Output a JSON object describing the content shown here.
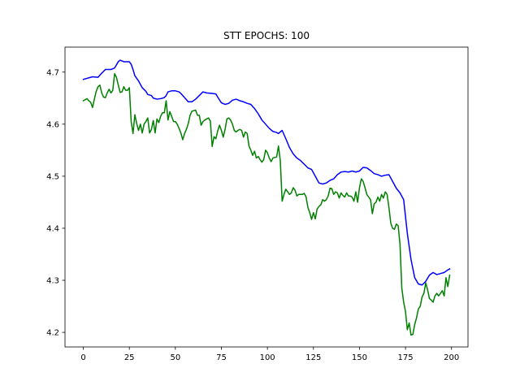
{
  "chart_data": {
    "type": "line",
    "title": "STT EPOCHS: 100",
    "xlabel": "",
    "ylabel": "",
    "xlim": [
      -9.95,
      208.95
    ],
    "ylim": [
      4.172,
      4.748
    ],
    "xticks": [
      0,
      25,
      50,
      75,
      100,
      125,
      150,
      175,
      200
    ],
    "yticks": [
      4.2,
      4.3,
      4.4,
      4.5,
      4.6,
      4.7
    ],
    "grid": false,
    "legend": "none",
    "series": [
      {
        "color": "#0000ff",
        "points": [
          [
            0,
            4.686
          ],
          [
            5,
            4.691
          ],
          [
            8,
            4.69
          ],
          [
            10,
            4.698
          ],
          [
            12,
            4.705
          ],
          [
            15,
            4.705
          ],
          [
            17,
            4.708
          ],
          [
            19,
            4.72
          ],
          [
            20,
            4.723
          ],
          [
            22,
            4.72
          ],
          [
            25,
            4.72
          ],
          [
            26,
            4.715
          ],
          [
            27,
            4.705
          ],
          [
            28,
            4.693
          ],
          [
            30,
            4.683
          ],
          [
            32,
            4.67
          ],
          [
            34,
            4.663
          ],
          [
            35,
            4.657
          ],
          [
            37,
            4.655
          ],
          [
            38,
            4.65
          ],
          [
            40,
            4.648
          ],
          [
            42,
            4.649
          ],
          [
            44,
            4.651
          ],
          [
            45,
            4.655
          ],
          [
            46,
            4.662
          ],
          [
            48,
            4.664
          ],
          [
            50,
            4.664
          ],
          [
            52,
            4.662
          ],
          [
            53,
            4.659
          ],
          [
            55,
            4.651
          ],
          [
            57,
            4.643
          ],
          [
            59,
            4.643
          ],
          [
            61,
            4.648
          ],
          [
            63,
            4.655
          ],
          [
            65,
            4.662
          ],
          [
            67,
            4.66
          ],
          [
            70,
            4.659
          ],
          [
            72,
            4.658
          ],
          [
            73,
            4.652
          ],
          [
            75,
            4.641
          ],
          [
            77,
            4.638
          ],
          [
            79,
            4.64
          ],
          [
            81,
            4.646
          ],
          [
            83,
            4.648
          ],
          [
            85,
            4.645
          ],
          [
            87,
            4.643
          ],
          [
            89,
            4.64
          ],
          [
            91,
            4.638
          ],
          [
            93,
            4.63
          ],
          [
            95,
            4.62
          ],
          [
            97,
            4.608
          ],
          [
            99,
            4.6
          ],
          [
            101,
            4.592
          ],
          [
            103,
            4.586
          ],
          [
            105,
            4.584
          ],
          [
            106,
            4.582
          ],
          [
            108,
            4.588
          ],
          [
            110,
            4.572
          ],
          [
            112,
            4.555
          ],
          [
            114,
            4.543
          ],
          [
            116,
            4.535
          ],
          [
            118,
            4.53
          ],
          [
            120,
            4.523
          ],
          [
            122,
            4.516
          ],
          [
            124,
            4.513
          ],
          [
            126,
            4.5
          ],
          [
            128,
            4.487
          ],
          [
            130,
            4.485
          ],
          [
            132,
            4.487
          ],
          [
            134,
            4.492
          ],
          [
            136,
            4.495
          ],
          [
            138,
            4.503
          ],
          [
            140,
            4.508
          ],
          [
            142,
            4.509
          ],
          [
            144,
            4.508
          ],
          [
            146,
            4.51
          ],
          [
            148,
            4.508
          ],
          [
            150,
            4.51
          ],
          [
            152,
            4.517
          ],
          [
            154,
            4.516
          ],
          [
            156,
            4.511
          ],
          [
            158,
            4.505
          ],
          [
            160,
            4.503
          ],
          [
            162,
            4.5
          ],
          [
            164,
            4.502
          ],
          [
            166,
            4.503
          ],
          [
            168,
            4.49
          ],
          [
            170,
            4.477
          ],
          [
            172,
            4.468
          ],
          [
            174,
            4.455
          ],
          [
            176,
            4.39
          ],
          [
            178,
            4.34
          ],
          [
            180,
            4.305
          ],
          [
            182,
            4.293
          ],
          [
            184,
            4.291
          ],
          [
            186,
            4.298
          ],
          [
            188,
            4.31
          ],
          [
            190,
            4.315
          ],
          [
            192,
            4.311
          ],
          [
            194,
            4.313
          ],
          [
            196,
            4.315
          ],
          [
            198,
            4.32
          ],
          [
            199,
            4.322
          ]
        ]
      },
      {
        "color": "#008000",
        "points": [
          [
            0,
            4.645
          ],
          [
            2,
            4.649
          ],
          [
            3,
            4.645
          ],
          [
            4,
            4.642
          ],
          [
            5,
            4.632
          ],
          [
            6,
            4.648
          ],
          [
            7,
            4.663
          ],
          [
            8,
            4.672
          ],
          [
            9,
            4.675
          ],
          [
            10,
            4.66
          ],
          [
            11,
            4.652
          ],
          [
            12,
            4.651
          ],
          [
            13,
            4.66
          ],
          [
            14,
            4.667
          ],
          [
            15,
            4.66
          ],
          [
            16,
            4.665
          ],
          [
            17,
            4.697
          ],
          [
            18,
            4.69
          ],
          [
            19,
            4.675
          ],
          [
            20,
            4.661
          ],
          [
            21,
            4.662
          ],
          [
            22,
            4.672
          ],
          [
            23,
            4.665
          ],
          [
            24,
            4.665
          ],
          [
            25,
            4.67
          ],
          [
            26,
            4.605
          ],
          [
            27,
            4.582
          ],
          [
            28,
            4.618
          ],
          [
            29,
            4.601
          ],
          [
            30,
            4.588
          ],
          [
            31,
            4.6
          ],
          [
            32,
            4.583
          ],
          [
            33,
            4.6
          ],
          [
            34,
            4.605
          ],
          [
            35,
            4.612
          ],
          [
            36,
            4.583
          ],
          [
            37,
            4.59
          ],
          [
            38,
            4.607
          ],
          [
            39,
            4.583
          ],
          [
            40,
            4.61
          ],
          [
            41,
            4.603
          ],
          [
            42,
            4.615
          ],
          [
            43,
            4.622
          ],
          [
            44,
            4.622
          ],
          [
            45,
            4.645
          ],
          [
            46,
            4.608
          ],
          [
            47,
            4.624
          ],
          [
            48,
            4.615
          ],
          [
            49,
            4.605
          ],
          [
            50,
            4.605
          ],
          [
            51,
            4.6
          ],
          [
            52,
            4.592
          ],
          [
            53,
            4.583
          ],
          [
            54,
            4.57
          ],
          [
            55,
            4.582
          ],
          [
            56,
            4.59
          ],
          [
            57,
            4.601
          ],
          [
            58,
            4.617
          ],
          [
            59,
            4.625
          ],
          [
            60,
            4.626
          ],
          [
            61,
            4.627
          ],
          [
            62,
            4.617
          ],
          [
            63,
            4.617
          ],
          [
            64,
            4.598
          ],
          [
            65,
            4.605
          ],
          [
            66,
            4.608
          ],
          [
            67,
            4.61
          ],
          [
            68,
            4.612
          ],
          [
            69,
            4.606
          ],
          [
            70,
            4.557
          ],
          [
            71,
            4.576
          ],
          [
            72,
            4.572
          ],
          [
            73,
            4.587
          ],
          [
            74,
            4.598
          ],
          [
            75,
            4.588
          ],
          [
            76,
            4.575
          ],
          [
            77,
            4.59
          ],
          [
            78,
            4.61
          ],
          [
            79,
            4.612
          ],
          [
            80,
            4.608
          ],
          [
            81,
            4.6
          ],
          [
            82,
            4.588
          ],
          [
            83,
            4.585
          ],
          [
            84,
            4.588
          ],
          [
            85,
            4.59
          ],
          [
            86,
            4.588
          ],
          [
            87,
            4.575
          ],
          [
            88,
            4.585
          ],
          [
            89,
            4.582
          ],
          [
            90,
            4.558
          ],
          [
            91,
            4.55
          ],
          [
            92,
            4.54
          ],
          [
            93,
            4.548
          ],
          [
            94,
            4.535
          ],
          [
            95,
            4.538
          ],
          [
            96,
            4.532
          ],
          [
            97,
            4.527
          ],
          [
            98,
            4.532
          ],
          [
            99,
            4.55
          ],
          [
            100,
            4.545
          ],
          [
            101,
            4.535
          ],
          [
            102,
            4.528
          ],
          [
            103,
            4.535
          ],
          [
            104,
            4.536
          ],
          [
            105,
            4.537
          ],
          [
            106,
            4.558
          ],
          [
            107,
            4.53
          ],
          [
            108,
            4.452
          ],
          [
            109,
            4.465
          ],
          [
            110,
            4.475
          ],
          [
            111,
            4.47
          ],
          [
            112,
            4.465
          ],
          [
            113,
            4.468
          ],
          [
            114,
            4.478
          ],
          [
            115,
            4.473
          ],
          [
            116,
            4.462
          ],
          [
            117,
            4.465
          ],
          [
            118,
            4.465
          ],
          [
            119,
            4.465
          ],
          [
            120,
            4.467
          ],
          [
            121,
            4.46
          ],
          [
            122,
            4.44
          ],
          [
            123,
            4.43
          ],
          [
            124,
            4.417
          ],
          [
            125,
            4.43
          ],
          [
            126,
            4.418
          ],
          [
            127,
            4.437
          ],
          [
            128,
            4.442
          ],
          [
            129,
            4.445
          ],
          [
            130,
            4.455
          ],
          [
            131,
            4.452
          ],
          [
            132,
            4.455
          ],
          [
            133,
            4.462
          ],
          [
            134,
            4.477
          ],
          [
            135,
            4.476
          ],
          [
            136,
            4.465
          ],
          [
            137,
            4.47
          ],
          [
            138,
            4.468
          ],
          [
            139,
            4.458
          ],
          [
            140,
            4.468
          ],
          [
            141,
            4.463
          ],
          [
            142,
            4.46
          ],
          [
            143,
            4.468
          ],
          [
            144,
            4.462
          ],
          [
            145,
            4.462
          ],
          [
            146,
            4.46
          ],
          [
            147,
            4.452
          ],
          [
            148,
            4.47
          ],
          [
            149,
            4.45
          ],
          [
            150,
            4.478
          ],
          [
            151,
            4.495
          ],
          [
            152,
            4.49
          ],
          [
            153,
            4.478
          ],
          [
            154,
            4.465
          ],
          [
            155,
            4.46
          ],
          [
            156,
            4.455
          ],
          [
            157,
            4.428
          ],
          [
            158,
            4.447
          ],
          [
            159,
            4.45
          ],
          [
            160,
            4.46
          ],
          [
            161,
            4.452
          ],
          [
            162,
            4.465
          ],
          [
            163,
            4.458
          ],
          [
            164,
            4.47
          ],
          [
            165,
            4.465
          ],
          [
            166,
            4.44
          ],
          [
            167,
            4.41
          ],
          [
            168,
            4.4
          ],
          [
            169,
            4.398
          ],
          [
            170,
            4.408
          ],
          [
            171,
            4.405
          ],
          [
            172,
            4.37
          ],
          [
            173,
            4.285
          ],
          [
            174,
            4.258
          ],
          [
            175,
            4.24
          ],
          [
            176,
            4.205
          ],
          [
            177,
            4.218
          ],
          [
            178,
            4.195
          ],
          [
            179,
            4.196
          ],
          [
            180,
            4.215
          ],
          [
            181,
            4.228
          ],
          [
            182,
            4.245
          ],
          [
            183,
            4.25
          ],
          [
            184,
            4.268
          ],
          [
            185,
            4.275
          ],
          [
            186,
            4.295
          ],
          [
            187,
            4.282
          ],
          [
            188,
            4.265
          ],
          [
            189,
            4.262
          ],
          [
            190,
            4.258
          ],
          [
            191,
            4.27
          ],
          [
            192,
            4.275
          ],
          [
            193,
            4.27
          ],
          [
            194,
            4.275
          ],
          [
            195,
            4.28
          ],
          [
            196,
            4.27
          ],
          [
            197,
            4.305
          ],
          [
            198,
            4.288
          ],
          [
            199,
            4.31
          ]
        ]
      }
    ]
  }
}
